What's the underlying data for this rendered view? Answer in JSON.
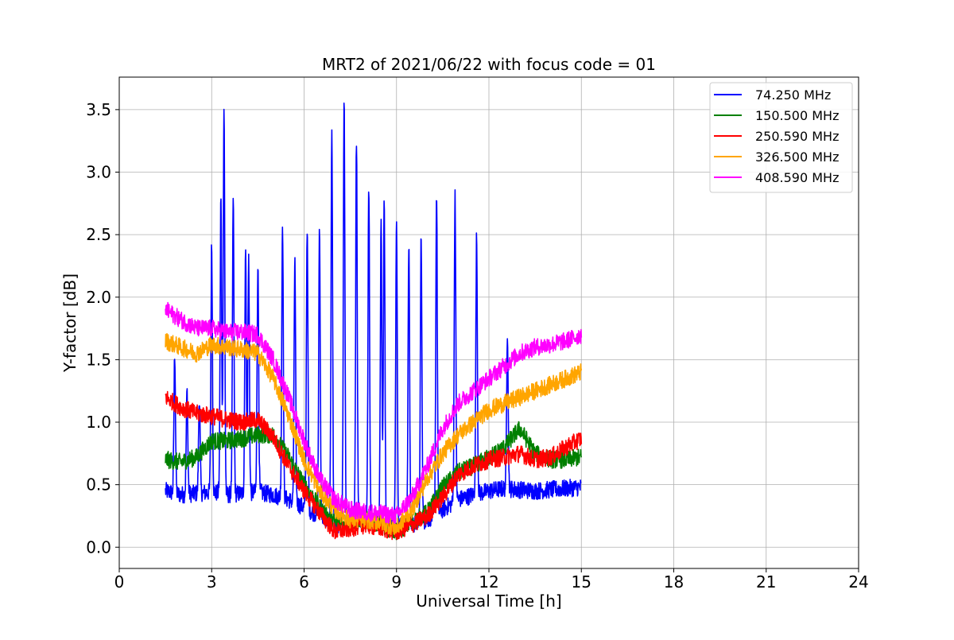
{
  "chart_data": {
    "type": "line",
    "title": "MRT2 of 2021/06/22 with focus code = 01",
    "xlabel": "Universal Time [h]",
    "ylabel": "Y-factor [dB]",
    "xlim": [
      0,
      24
    ],
    "ylim": [
      -0.17,
      3.76
    ],
    "xticks": [
      0,
      3,
      6,
      9,
      12,
      15,
      18,
      21,
      24
    ],
    "xtick_labels": [
      "0",
      "3",
      "6",
      "9",
      "12",
      "15",
      "18",
      "21",
      "24"
    ],
    "yticks": [
      0.0,
      0.5,
      1.0,
      1.5,
      2.0,
      2.5,
      3.0,
      3.5
    ],
    "ytick_labels": [
      "0.0",
      "0.5",
      "1.0",
      "1.5",
      "2.0",
      "2.5",
      "3.0",
      "3.5"
    ],
    "grid": true,
    "legend_position": "top-right",
    "series": [
      {
        "name": " 74.250 MHz",
        "color": "#0000ff",
        "x": [
          1.5,
          2.0,
          2.5,
          3.0,
          3.5,
          4.0,
          4.5,
          5.0,
          5.5,
          6.0,
          6.5,
          7.0,
          7.5,
          8.0,
          8.5,
          9.0,
          9.5,
          10.0,
          10.5,
          11.0,
          11.5,
          12.0,
          12.5,
          13.0,
          13.5,
          14.0,
          14.5,
          15.0
        ],
        "y": [
          0.45,
          0.42,
          0.43,
          0.44,
          0.42,
          0.43,
          0.44,
          0.42,
          0.38,
          0.32,
          0.25,
          0.18,
          0.2,
          0.22,
          0.2,
          0.18,
          0.18,
          0.22,
          0.3,
          0.38,
          0.42,
          0.45,
          0.47,
          0.46,
          0.45,
          0.46,
          0.47,
          0.48
        ],
        "peaks": [
          {
            "x": 1.8,
            "y": 1.55
          },
          {
            "x": 2.2,
            "y": 1.25
          },
          {
            "x": 2.6,
            "y": 1.2
          },
          {
            "x": 3.0,
            "y": 2.41
          },
          {
            "x": 3.3,
            "y": 2.8
          },
          {
            "x": 3.4,
            "y": 3.52
          },
          {
            "x": 3.7,
            "y": 2.77
          },
          {
            "x": 4.1,
            "y": 2.38
          },
          {
            "x": 4.2,
            "y": 2.3
          },
          {
            "x": 4.5,
            "y": 2.27
          },
          {
            "x": 5.3,
            "y": 2.62
          },
          {
            "x": 5.7,
            "y": 2.3
          },
          {
            "x": 6.1,
            "y": 2.57
          },
          {
            "x": 6.5,
            "y": 2.53
          },
          {
            "x": 6.9,
            "y": 3.38
          },
          {
            "x": 7.3,
            "y": 3.59
          },
          {
            "x": 7.7,
            "y": 3.27
          },
          {
            "x": 8.1,
            "y": 2.92
          },
          {
            "x": 8.5,
            "y": 2.61
          },
          {
            "x": 8.6,
            "y": 2.78
          },
          {
            "x": 9.0,
            "y": 2.68
          },
          {
            "x": 9.4,
            "y": 2.45
          },
          {
            "x": 9.8,
            "y": 2.5
          },
          {
            "x": 10.3,
            "y": 2.83
          },
          {
            "x": 10.9,
            "y": 2.85
          },
          {
            "x": 11.6,
            "y": 2.48
          },
          {
            "x": 12.6,
            "y": 1.73
          }
        ]
      },
      {
        "name": "150.500 MHz",
        "color": "#008000",
        "x": [
          1.5,
          2.0,
          2.5,
          3.0,
          3.5,
          4.0,
          4.5,
          5.0,
          5.5,
          6.0,
          6.5,
          7.0,
          7.5,
          8.0,
          8.5,
          9.0,
          9.5,
          10.0,
          10.5,
          11.0,
          11.5,
          12.0,
          12.5,
          13.0,
          13.5,
          14.0,
          14.5,
          15.0
        ],
        "y": [
          0.7,
          0.68,
          0.72,
          0.85,
          0.85,
          0.87,
          0.9,
          0.9,
          0.72,
          0.5,
          0.32,
          0.2,
          0.2,
          0.22,
          0.18,
          0.12,
          0.2,
          0.28,
          0.48,
          0.6,
          0.65,
          0.72,
          0.8,
          0.95,
          0.75,
          0.7,
          0.7,
          0.72
        ]
      },
      {
        "name": "250.590 MHz",
        "color": "#ff0000",
        "x": [
          1.5,
          2.0,
          2.5,
          3.0,
          3.5,
          4.0,
          4.5,
          5.0,
          5.5,
          6.0,
          6.5,
          7.0,
          7.5,
          8.0,
          8.5,
          9.0,
          9.5,
          10.0,
          10.5,
          11.0,
          11.5,
          12.0,
          12.5,
          13.0,
          13.5,
          14.0,
          14.5,
          15.0
        ],
        "y": [
          1.2,
          1.12,
          1.07,
          1.05,
          1.02,
          1.0,
          1.02,
          0.88,
          0.65,
          0.45,
          0.28,
          0.12,
          0.15,
          0.18,
          0.15,
          0.12,
          0.18,
          0.25,
          0.4,
          0.58,
          0.65,
          0.7,
          0.72,
          0.75,
          0.7,
          0.72,
          0.8,
          0.87
        ]
      },
      {
        "name": "326.500 MHz",
        "color": "#ffa500",
        "x": [
          1.5,
          2.0,
          2.5,
          3.0,
          3.5,
          4.0,
          4.5,
          5.0,
          5.5,
          6.0,
          6.5,
          7.0,
          7.5,
          8.0,
          8.5,
          9.0,
          9.5,
          10.0,
          10.5,
          11.0,
          11.5,
          12.0,
          12.5,
          13.0,
          13.5,
          14.0,
          14.5,
          15.0
        ],
        "y": [
          1.65,
          1.6,
          1.55,
          1.62,
          1.6,
          1.58,
          1.55,
          1.35,
          1.05,
          0.7,
          0.45,
          0.3,
          0.22,
          0.22,
          0.2,
          0.15,
          0.3,
          0.55,
          0.75,
          0.9,
          1.0,
          1.1,
          1.15,
          1.2,
          1.25,
          1.3,
          1.35,
          1.4
        ]
      },
      {
        "name": "408.590 MHz",
        "color": "#ff00ff",
        "x": [
          1.5,
          2.0,
          2.5,
          3.0,
          3.5,
          4.0,
          4.5,
          5.0,
          5.5,
          6.0,
          6.5,
          7.0,
          7.5,
          8.0,
          8.5,
          9.0,
          9.5,
          10.0,
          10.5,
          11.0,
          11.5,
          12.0,
          12.5,
          13.0,
          13.5,
          14.0,
          14.5,
          15.0
        ],
        "y": [
          1.9,
          1.82,
          1.75,
          1.75,
          1.72,
          1.72,
          1.7,
          1.5,
          1.2,
          0.85,
          0.55,
          0.38,
          0.3,
          0.28,
          0.27,
          0.25,
          0.4,
          0.65,
          0.95,
          1.15,
          1.25,
          1.35,
          1.45,
          1.55,
          1.6,
          1.62,
          1.65,
          1.7
        ]
      }
    ]
  }
}
